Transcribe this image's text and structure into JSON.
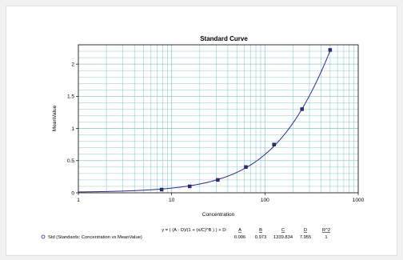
{
  "chart_data": {
    "type": "scatter",
    "title": "Standard Curve",
    "xlabel": "Concentration",
    "ylabel": "MeanValue",
    "x_scale": "log",
    "xlim": [
      1,
      1000
    ],
    "ylim": [
      0,
      2.3
    ],
    "x_ticks": [
      "1",
      "10",
      "100",
      "1000"
    ],
    "y_ticks": [
      "0",
      "0.5",
      "1",
      "1.5",
      "2"
    ],
    "grid": true,
    "series": [
      {
        "name": "Std (Standards: Concentration vs MeanValue)",
        "color": "#2b2b8c",
        "points": [
          {
            "x": 7.8,
            "y": 0.05
          },
          {
            "x": 15.6,
            "y": 0.1
          },
          {
            "x": 31.25,
            "y": 0.2
          },
          {
            "x": 62.5,
            "y": 0.4
          },
          {
            "x": 125,
            "y": 0.75
          },
          {
            "x": 250,
            "y": 1.3
          },
          {
            "x": 500,
            "y": 2.22
          }
        ]
      }
    ],
    "fit": {
      "equation": "y = ( (A - D)/(1 + (x/C)^B ) ) + D:",
      "columns": [
        "A",
        "B",
        "C",
        "D",
        "R^2"
      ],
      "values": [
        "0.006",
        "0.973",
        "1339.834",
        "7.955",
        "1"
      ],
      "params": {
        "A": 0.006,
        "B": 0.973,
        "C": 1339.834,
        "D": 7.955
      }
    }
  },
  "colors": {
    "grid": "#8fcccc",
    "axis": "#000000",
    "curve": "#2b2b8c",
    "background": "#f1f1f1"
  }
}
